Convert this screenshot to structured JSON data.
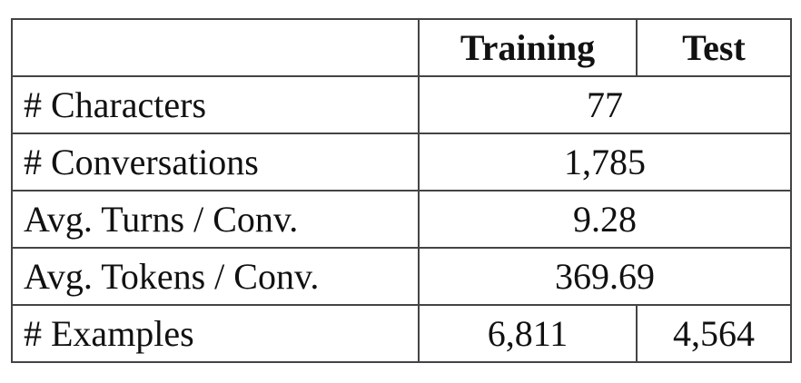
{
  "table": {
    "header": {
      "col0": "",
      "col1": "Training",
      "col2": "Test"
    },
    "rows": [
      {
        "label": "# Characters",
        "value": "77"
      },
      {
        "label": "# Conversations",
        "value": "1,785"
      },
      {
        "label": "Avg. Turns / Conv.",
        "value": "9.28"
      },
      {
        "label": "Avg. Tokens / Conv.",
        "value": "369.69"
      }
    ],
    "last_row": {
      "label": "# Examples",
      "training": "6,811",
      "test": "4,564"
    }
  }
}
